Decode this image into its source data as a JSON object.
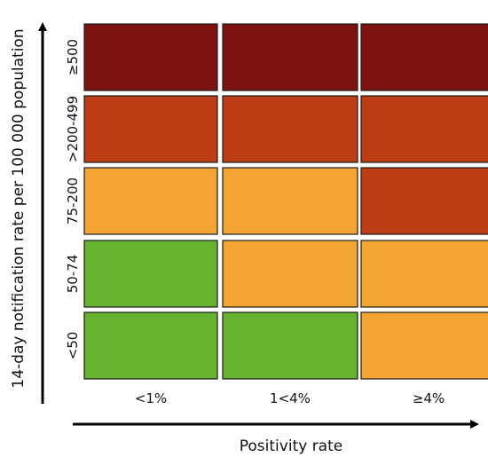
{
  "chart_data": {
    "type": "heatmap",
    "title": "",
    "xlabel": "Positivity rate",
    "ylabel": "14-day notification rate per 100 000 population",
    "x_categories": [
      "<1%",
      "1<4%",
      "≥4%"
    ],
    "y_categories": [
      "<50",
      "50-74",
      "75-200",
      ">200-499",
      "≥500"
    ],
    "levels": [
      "green",
      "orange",
      "red",
      "dark-red"
    ],
    "level_colors": {
      "green": "#67b32f",
      "orange": "#f2a631",
      "red": "#bd3d14",
      "dark-red": "#7d1210"
    },
    "values": [
      [
        "green",
        "green",
        "orange"
      ],
      [
        "green",
        "orange",
        "orange"
      ],
      [
        "orange",
        "orange",
        "red"
      ],
      [
        "red",
        "red",
        "red"
      ],
      [
        "dark-red",
        "dark-red",
        "dark-red"
      ]
    ],
    "grid": false,
    "legend": "none"
  }
}
